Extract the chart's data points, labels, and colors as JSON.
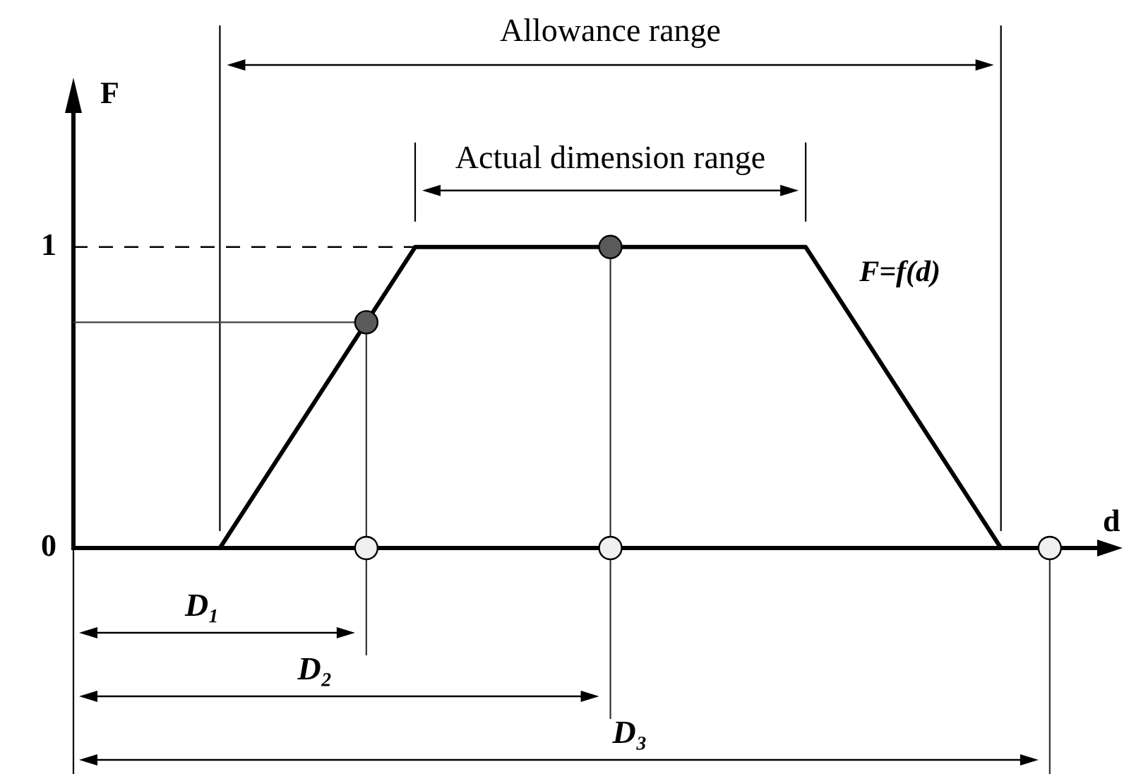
{
  "chart_data": {
    "type": "line",
    "xlabel": "d",
    "ylabel": "F",
    "annotations": [
      "Allowance range",
      "Actual dimension range",
      "D₁",
      "D₂",
      "D₃"
    ],
    "categories": [
      null,
      null,
      null,
      null,
      null,
      null,
      null,
      null,
      null,
      null,
      null,
      null,
      null,
      null,
      null,
      null,
      null,
      null,
      null,
      null,
      null,
      null
    ],
    "series": [
      {
        "name": "F=f(d)",
        "color": "#000000",
        "marker": "none",
        "values": [
          null,
          null,
          null,
          0,
          0.25,
          0.5,
          0.75,
          1,
          1,
          1,
          1,
          1,
          1,
          1,
          1,
          1,
          0.75,
          0.5,
          0.25,
          0,
          null,
          null
        ]
      },
      {
        "color": "#000000",
        "marker": "none",
        "line_style": "dashed",
        "values": [
          1,
          1,
          1,
          1,
          1,
          1,
          1,
          1,
          null,
          null,
          null,
          null,
          null,
          null,
          null,
          null,
          null,
          null,
          null,
          null,
          null,
          null
        ]
      },
      {
        "color": "#404040",
        "marker": "none",
        "values": [
          0.75,
          0.75,
          0.75,
          0.75,
          0.75,
          0.75,
          0.75,
          null,
          null,
          null,
          null,
          null,
          null,
          null,
          null,
          null,
          null,
          null,
          null,
          null,
          null,
          null
        ]
      },
      {
        "type": "scatter",
        "color": "#5a5a5a",
        "values": [
          null,
          null,
          null,
          null,
          null,
          null,
          0.75,
          null,
          null,
          null,
          null,
          1,
          null,
          null,
          null,
          null,
          null,
          null,
          null,
          null,
          null,
          null
        ]
      },
      {
        "type": "scatter",
        "color": "#f0f0f0",
        "values": [
          null,
          null,
          null,
          null,
          null,
          null,
          0,
          null,
          null,
          null,
          null,
          0,
          null,
          null,
          null,
          null,
          null,
          null,
          null,
          null,
          0,
          null
        ]
      }
    ],
    "ylim": [
      0,
      1.45
    ],
    "yticks": [
      0,
      1
    ],
    "tick_labels": "y",
    "grid": false,
    "legend": false,
    "marker": "circle"
  }
}
